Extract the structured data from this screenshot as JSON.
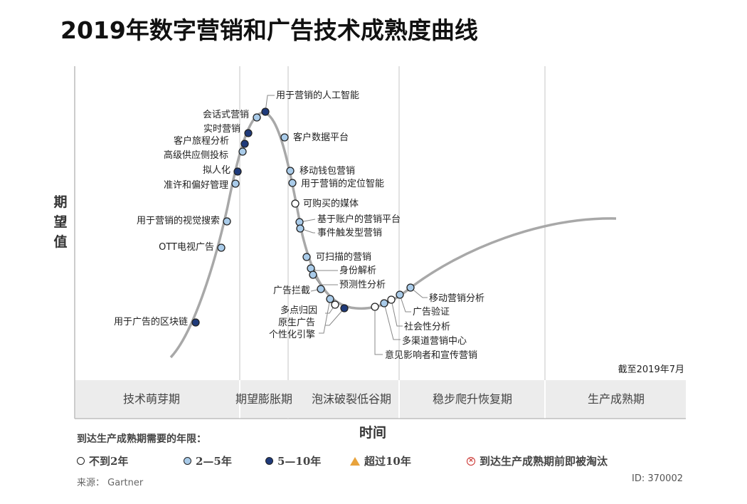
{
  "title": "2019年数字营销和广告技术成熟度曲线",
  "y_axis_label": "期望值",
  "x_axis_label": "时间",
  "as_of": "截至2019年7月",
  "phases": [
    "技术萌芽期",
    "期望膨胀期",
    "泡沫破裂低谷期",
    "稳步爬升恢复期",
    "生产成熟期"
  ],
  "legend": {
    "title": "到达生产成熟期需要的年限：",
    "items": [
      {
        "label": "不到2年",
        "symbol": "white-circle-icon",
        "color": "#ffffff"
      },
      {
        "label": "2—5年",
        "symbol": "lightblue-circle-icon",
        "color": "#a9cbe9"
      },
      {
        "label": "5—10年",
        "symbol": "darkblue-circle-icon",
        "color": "#1f3a7a"
      },
      {
        "label": "超过10年",
        "symbol": "orange-triangle-icon",
        "color": "#e8a33c"
      },
      {
        "label": "到达生产成熟期前即被淘汰",
        "symbol": "red-cross-circle-icon",
        "color": "#c9302c"
      }
    ]
  },
  "source": "来源： Gartner",
  "id": "ID: 370002",
  "technologies": [
    {
      "label": "用于营销的人工智能",
      "category": "5-10"
    },
    {
      "label": "会话式营销",
      "category": "2-5"
    },
    {
      "label": "实时营销",
      "category": "5-10"
    },
    {
      "label": "客户旅程分析",
      "category": "5-10"
    },
    {
      "label": "高级供应侧投标",
      "category": "2-5"
    },
    {
      "label": "拟人化",
      "category": "5-10"
    },
    {
      "label": "准许和偏好管理",
      "category": "2-5"
    },
    {
      "label": "用于营销的视觉搜索",
      "category": "2-5"
    },
    {
      "label": "OTT电视广告",
      "category": "2-5"
    },
    {
      "label": "用于广告的区块链",
      "category": "5-10"
    },
    {
      "label": "客户数据平台",
      "category": "2-5"
    },
    {
      "label": "移动钱包营销",
      "category": "2-5"
    },
    {
      "label": "用于营销的定位智能",
      "category": "2-5"
    },
    {
      "label": "可购买的媒体",
      "category": "<2"
    },
    {
      "label": "基于账户的营销平台",
      "category": "2-5"
    },
    {
      "label": "事件触发型营销",
      "category": "2-5"
    },
    {
      "label": "可扫描的营销",
      "category": "2-5"
    },
    {
      "label": "身份解析",
      "category": "2-5"
    },
    {
      "label": "预测性分析",
      "category": "2-5"
    },
    {
      "label": "广告拦截",
      "category": "2-5"
    },
    {
      "label": "多点归因",
      "category": "2-5"
    },
    {
      "label": "原生广告",
      "category": "<2"
    },
    {
      "label": "个性化引擎",
      "category": "5-10"
    },
    {
      "label": "意见影响者和宣传营销",
      "category": "<2"
    },
    {
      "label": "多渠道营销中心",
      "category": "2-5"
    },
    {
      "label": "社会性分析",
      "category": "<2"
    },
    {
      "label": "广告验证",
      "category": "2-5"
    },
    {
      "label": "移动营销分析",
      "category": "2-5"
    }
  ],
  "colors": {
    "<2": "#ffffff",
    "2-5": "#a9cbe9",
    "5-10": "#1f3a7a",
    "curve": "#a8a8a8",
    "band": "#ececec"
  }
}
